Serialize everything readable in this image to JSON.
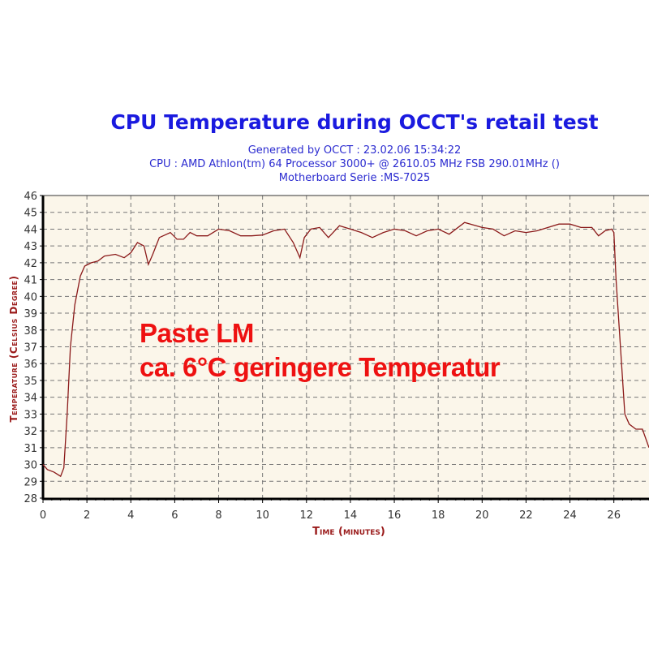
{
  "chart_data": {
    "type": "line",
    "title": "CPU Temperature during OCCT's retail test",
    "subtitle_lines": [
      "Generated by OCCT : 23.02.06 15:34:22",
      "CPU : AMD Athlon(tm) 64 Processor 3000+ @ 2610.05 MHz FSB 290.01MHz ()",
      "Motherboard Serie :MS-7025"
    ],
    "xlabel": "Time (minutes)",
    "ylabel": "Temperature (Celsius Degree)",
    "xlim": [
      0,
      27.6
    ],
    "ylim": [
      28,
      46
    ],
    "xticks": [
      0,
      2,
      4,
      6,
      8,
      10,
      12,
      14,
      16,
      18,
      20,
      22,
      24,
      26
    ],
    "yticks": [
      28,
      29,
      30,
      31,
      32,
      33,
      34,
      35,
      36,
      37,
      38,
      39,
      40,
      41,
      42,
      43,
      44,
      45,
      46
    ],
    "grid": true,
    "line_color": "#8b1a1a",
    "annotations": [
      "Paste LM",
      "ca. 6°C geringere Temperatur"
    ],
    "series": [
      {
        "x": [
          0,
          0.2,
          0.5,
          0.8,
          0.95,
          1.1,
          1.25,
          1.45,
          1.7,
          1.9,
          2.2,
          2.5,
          2.8,
          3.3,
          3.7,
          4,
          4.3,
          4.6,
          4.8,
          5,
          5.3,
          5.8,
          6.1,
          6.4,
          6.7,
          7,
          7.5,
          8,
          8.5,
          9,
          9.5,
          10,
          10.5,
          11,
          11.4,
          11.7,
          11.9,
          12.2,
          12.6,
          13,
          13.5,
          14,
          14.5,
          15,
          15.5,
          16,
          16.5,
          17,
          17.5,
          18,
          18.5,
          19.2,
          20,
          20.5,
          21,
          21.5,
          22,
          22.5,
          23,
          23.5,
          24,
          24.5,
          25,
          25.3,
          25.6,
          25.9,
          26,
          26.1,
          26.3,
          26.5,
          26.7,
          27,
          27.3,
          27.6
        ],
        "y": [
          30,
          29.7,
          29.55,
          29.3,
          29.8,
          33,
          37,
          39.5,
          41.2,
          41.8,
          42.0,
          42.1,
          42.4,
          42.5,
          42.3,
          42.6,
          43.2,
          43.0,
          41.9,
          42.5,
          43.5,
          43.8,
          43.4,
          43.4,
          43.8,
          43.6,
          43.6,
          44.0,
          43.9,
          43.6,
          43.6,
          43.65,
          43.9,
          44.0,
          43.2,
          42.3,
          43.5,
          44.0,
          44.1,
          43.5,
          44.2,
          44.0,
          43.8,
          43.5,
          43.8,
          44.0,
          43.9,
          43.6,
          43.9,
          44.0,
          43.7,
          44.4,
          44.1,
          44.0,
          43.6,
          43.9,
          43.8,
          43.9,
          44.1,
          44.3,
          44.3,
          44.1,
          44.1,
          43.6,
          43.9,
          44.0,
          43.8,
          41,
          37,
          33,
          32.4,
          32.1,
          32.1,
          31.0
        ]
      }
    ]
  }
}
